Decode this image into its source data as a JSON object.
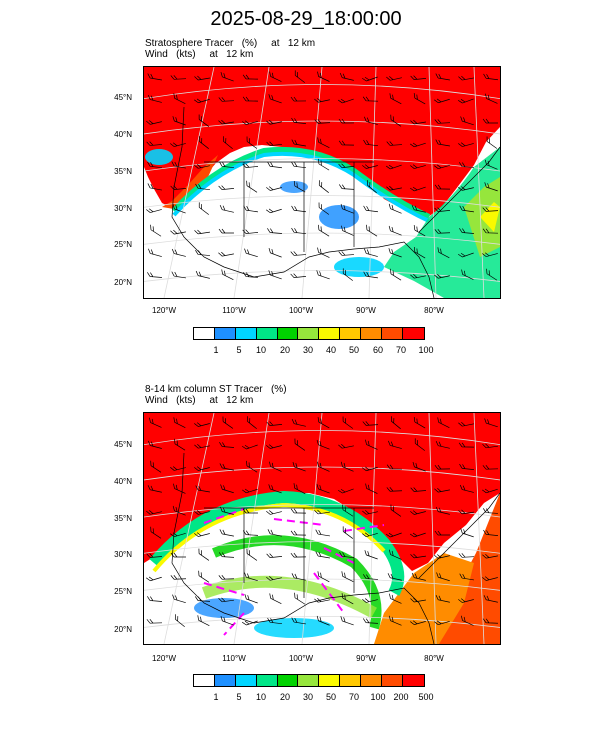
{
  "title": "2025-08-29_18:00:00",
  "panels": [
    {
      "subtitle1": "Stratosphere Tracer   (%)     at   12 km",
      "subtitle2": "Wind   (kts)     at   12 km",
      "lat_labels": [
        "45°N",
        "40°N",
        "35°N",
        "30°N",
        "25°N",
        "20°N"
      ],
      "lon_labels": [
        "120°W",
        "110°W",
        "100°W",
        "90°W",
        "80°W"
      ],
      "colorbar_labels": [
        "1",
        "5",
        "10",
        "20",
        "30",
        "40",
        "50",
        "60",
        "70",
        "100"
      ],
      "colorbar_colors": [
        "#ffffff",
        "#1e90ff",
        "#00d5ff",
        "#00e687",
        "#00d200",
        "#96e63c",
        "#fafa00",
        "#ffc800",
        "#ff8c00",
        "#ff4b00",
        "#ff0000"
      ]
    },
    {
      "subtitle1": "8-14 km column ST Tracer   (%)",
      "subtitle2": "Wind   (kts)     at   12 km",
      "lat_labels": [
        "45°N",
        "40°N",
        "35°N",
        "30°N",
        "25°N",
        "20°N"
      ],
      "lon_labels": [
        "120°W",
        "110°W",
        "100°W",
        "90°W",
        "80°W"
      ],
      "colorbar_labels": [
        "1",
        "5",
        "10",
        "20",
        "30",
        "50",
        "70",
        "100",
        "200",
        "500"
      ],
      "colorbar_colors": [
        "#ffffff",
        "#1e90ff",
        "#00d5ff",
        "#00e687",
        "#00d200",
        "#96e63c",
        "#fafa00",
        "#ffc800",
        "#ff8c00",
        "#ff4b00",
        "#ff0000"
      ]
    }
  ],
  "colors": {
    "tracer_high": "#ff0000",
    "background_low": "#ffffff",
    "jet_axis_dash": "#ff00ff"
  },
  "icons": {
    "wind_barbs": "wind-barb-icon"
  }
}
